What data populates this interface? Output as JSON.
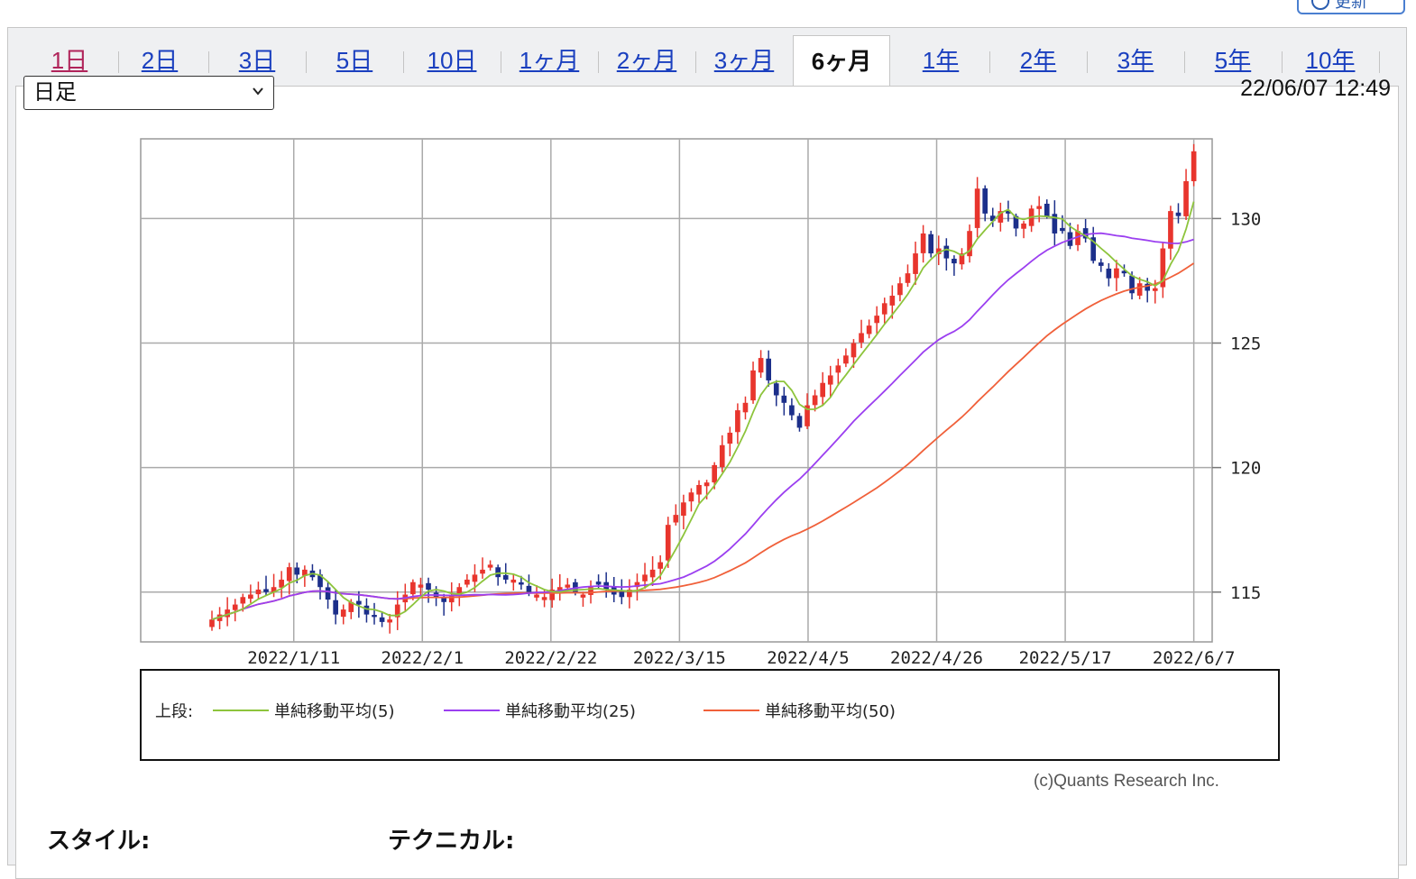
{
  "header": {
    "refresh_label": "更新"
  },
  "tabs": [
    {
      "label": "1日",
      "state": "visited"
    },
    {
      "label": "2日",
      "state": "link"
    },
    {
      "label": "3日",
      "state": "link"
    },
    {
      "label": "5日",
      "state": "link"
    },
    {
      "label": "10日",
      "state": "link"
    },
    {
      "label": "1ヶ月",
      "state": "link"
    },
    {
      "label": "2ヶ月",
      "state": "link"
    },
    {
      "label": "3ヶ月",
      "state": "link"
    },
    {
      "label": "6ヶ月",
      "state": "active"
    },
    {
      "label": "1年",
      "state": "link"
    },
    {
      "label": "2年",
      "state": "link"
    },
    {
      "label": "3年",
      "state": "link"
    },
    {
      "label": "5年",
      "state": "link"
    },
    {
      "label": "10年",
      "state": "link"
    }
  ],
  "controls": {
    "period_select": "日足",
    "timestamp": "22/06/07 12:49"
  },
  "colors": {
    "up": "#e8352d",
    "down": "#1c2f8a",
    "sma5": "#8dc43c",
    "sma25": "#9b3ff0",
    "sma50": "#f0603a"
  },
  "chart_data": {
    "type": "candlestick",
    "xticks": [
      "2022/1/11",
      "2022/2/1",
      "2022/2/22",
      "2022/3/15",
      "2022/4/5",
      "2022/4/26",
      "2022/5/17",
      "2022/6/7"
    ],
    "yticks": [
      115,
      120,
      125,
      130
    ],
    "ylim": [
      113,
      133.2
    ],
    "xlim": [
      "2021/12/17",
      "2022/6/10"
    ],
    "close": [
      113.9,
      114.1,
      114.3,
      114.5,
      114.8,
      114.9,
      115.1,
      115.0,
      115.2,
      115.5,
      116.0,
      115.7,
      115.9,
      115.6,
      115.2,
      114.7,
      114.1,
      114.3,
      114.6,
      114.5,
      114.1,
      114.0,
      113.8,
      113.9,
      114.5,
      114.9,
      115.4,
      115.3,
      115.1,
      114.8,
      114.6,
      114.9,
      115.2,
      115.5,
      115.7,
      115.9,
      116.1,
      115.6,
      115.5,
      115.5,
      115.3,
      115.0,
      114.9,
      114.8,
      115.1,
      115.2,
      115.3,
      115.0,
      114.9,
      115.2,
      115.3,
      115.1,
      114.9,
      114.8,
      115.1,
      115.4,
      115.7,
      115.9,
      116.2,
      117.7,
      118.1,
      118.6,
      119.0,
      119.3,
      119.4,
      120.1,
      120.9,
      121.4,
      122.3,
      122.6,
      123.9,
      124.4,
      123.5,
      122.9,
      122.6,
      122.1,
      121.6,
      122.5,
      122.9,
      123.4,
      123.7,
      124.1,
      124.5,
      125.0,
      125.4,
      125.7,
      126.1,
      126.6,
      126.9,
      127.4,
      127.8,
      128.6,
      129.4,
      128.6,
      128.8,
      128.4,
      128.2,
      128.6,
      129.5,
      131.2,
      130.2,
      129.9,
      130.3,
      130.2,
      129.6,
      129.8,
      130.4,
      130.5,
      130.1,
      129.4,
      129.5,
      128.9,
      129.5,
      129.2,
      128.3,
      128.1,
      127.6,
      128.0,
      127.8,
      127.0,
      127.4,
      127.1,
      127.2,
      128.8,
      130.3,
      130.1,
      131.5,
      132.7
    ]
  },
  "legend": {
    "prefix": "上段:",
    "items": [
      {
        "label": "単純移動平均(5)"
      },
      {
        "label": "単純移動平均(25)"
      },
      {
        "label": "単純移動平均(50)"
      }
    ]
  },
  "footer": {
    "copyright": "(c)Quants Research Inc.",
    "style_label": "スタイル:",
    "technical_label": "テクニカル:"
  }
}
